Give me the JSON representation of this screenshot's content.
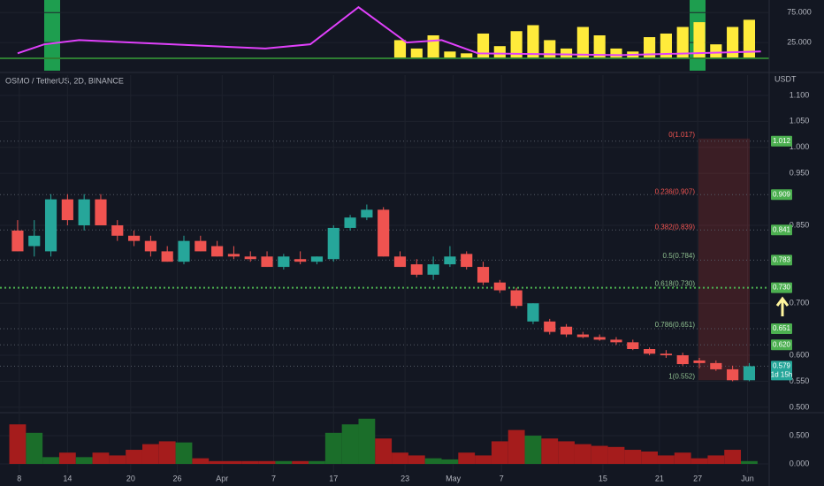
{
  "chart_data": [
    {
      "type": "candlestick",
      "title": "OSMO / TetherUS, 2D, BINANCE",
      "unit": "USDT",
      "xlim": [
        -1.06,
        45.2
      ],
      "xticks": [
        {
          "value": 0.1,
          "label": "8"
        },
        {
          "value": 3.0,
          "label": "14"
        },
        {
          "value": 6.8,
          "label": "20"
        },
        {
          "value": 9.6,
          "label": "26"
        },
        {
          "value": 12.3,
          "label": "Apr"
        },
        {
          "value": 15.4,
          "label": "7"
        },
        {
          "value": 19.0,
          "label": "17"
        },
        {
          "value": 23.3,
          "label": "23"
        },
        {
          "value": 26.2,
          "label": "May"
        },
        {
          "value": 29.1,
          "label": "7"
        },
        {
          "value": 35.2,
          "label": "15"
        },
        {
          "value": 38.6,
          "label": "21"
        },
        {
          "value": 40.9,
          "label": "27"
        },
        {
          "value": 43.9,
          "label": "Jun"
        }
      ],
      "ylim": [
        0.493,
        1.139
      ],
      "yticks": [
        {
          "value": 1.1,
          "label": "1.100"
        },
        {
          "value": 1.05,
          "label": "1.050"
        },
        {
          "value": 1.0,
          "label": "1.000"
        },
        {
          "value": 0.95,
          "label": "0.950"
        },
        {
          "value": 0.85,
          "label": "0.850"
        },
        {
          "value": 0.7,
          "label": "0.700"
        },
        {
          "value": 0.6,
          "label": "0.600"
        },
        {
          "value": 0.55,
          "label": "0.550"
        },
        {
          "value": 0.5,
          "label": "0.500"
        }
      ],
      "open": [
        0.84,
        0.81,
        0.8,
        0.9,
        0.85,
        0.9,
        0.85,
        0.83,
        0.82,
        0.8,
        0.78,
        0.82,
        0.81,
        0.795,
        0.79,
        0.79,
        0.77,
        0.785,
        0.78,
        0.785,
        0.845,
        0.865,
        0.88,
        0.79,
        0.775,
        0.755,
        0.775,
        0.795,
        0.77,
        0.74,
        0.725,
        0.665,
        0.665,
        0.655,
        0.64,
        0.635,
        0.63,
        0.625,
        0.612,
        0.603,
        0.6,
        0.59,
        0.585,
        0.573,
        0.552
      ],
      "high": [
        0.86,
        0.86,
        0.91,
        0.91,
        0.91,
        0.91,
        0.86,
        0.84,
        0.83,
        0.81,
        0.83,
        0.83,
        0.82,
        0.81,
        0.8,
        0.8,
        0.795,
        0.8,
        0.79,
        0.85,
        0.87,
        0.89,
        0.885,
        0.8,
        0.785,
        0.79,
        0.81,
        0.8,
        0.78,
        0.745,
        0.73,
        0.7,
        0.67,
        0.66,
        0.645,
        0.64,
        0.635,
        0.63,
        0.615,
        0.61,
        0.605,
        0.595,
        0.59,
        0.58,
        0.585
      ],
      "low": [
        0.8,
        0.79,
        0.79,
        0.85,
        0.84,
        0.85,
        0.82,
        0.81,
        0.79,
        0.78,
        0.775,
        0.8,
        0.79,
        0.785,
        0.78,
        0.77,
        0.765,
        0.775,
        0.775,
        0.78,
        0.84,
        0.86,
        0.79,
        0.77,
        0.75,
        0.745,
        0.77,
        0.765,
        0.735,
        0.72,
        0.69,
        0.66,
        0.64,
        0.635,
        0.633,
        0.628,
        0.62,
        0.61,
        0.6,
        0.595,
        0.58,
        0.575,
        0.57,
        0.55,
        0.55
      ],
      "close": [
        0.8,
        0.83,
        0.9,
        0.86,
        0.9,
        0.85,
        0.83,
        0.82,
        0.8,
        0.78,
        0.82,
        0.8,
        0.79,
        0.79,
        0.785,
        0.77,
        0.79,
        0.78,
        0.79,
        0.845,
        0.865,
        0.88,
        0.79,
        0.77,
        0.755,
        0.775,
        0.79,
        0.77,
        0.74,
        0.725,
        0.695,
        0.7,
        0.645,
        0.64,
        0.635,
        0.63,
        0.625,
        0.612,
        0.603,
        0.6,
        0.583,
        0.585,
        0.573,
        0.552,
        0.579
      ],
      "up_color": "#26a69a",
      "down_color": "#ef5350",
      "fib_levels": [
        {
          "value": 1.017,
          "label": "0(1.017)"
        },
        {
          "value": 0.907,
          "label": "0.236(0.907)"
        },
        {
          "value": 0.839,
          "label": "0.382(0.839)"
        },
        {
          "value": 0.784,
          "label": "0.5(0.784)"
        },
        {
          "value": 0.73,
          "label": "0.618(0.730)"
        },
        {
          "value": 0.651,
          "label": "0.786(0.651)"
        },
        {
          "value": 0.552,
          "label": "1(0.552)"
        }
      ],
      "price_lines": [
        {
          "value": 1.012,
          "label": "1.012"
        },
        {
          "value": 0.909,
          "label": "0.909"
        },
        {
          "value": 0.841,
          "label": "0.841"
        },
        {
          "value": 0.783,
          "label": "0.783"
        },
        {
          "value": 0.73,
          "label": "0.730"
        },
        {
          "value": 0.651,
          "label": "0.651"
        },
        {
          "value": 0.62,
          "label": "0.620"
        },
        {
          "value": 0.579,
          "label": "0.579",
          "countdown": "1d 15h"
        }
      ]
    },
    {
      "type": "indicator",
      "ylim": [
        -22,
        96
      ],
      "yticks": [
        {
          "value": 75,
          "label": "75.000"
        },
        {
          "value": 25,
          "label": "25.000"
        }
      ],
      "bars": {
        "color": "#ffeb3b",
        "x": [
          23,
          24,
          25,
          26,
          27,
          28,
          29,
          30,
          31,
          32,
          33,
          34,
          35,
          36,
          37,
          38,
          39,
          40,
          41,
          42,
          43,
          44
        ],
        "values": [
          29,
          15,
          37,
          10,
          7,
          40,
          19,
          44,
          54,
          29,
          15,
          51,
          37,
          15,
          10,
          34,
          40,
          51,
          59,
          22,
          51,
          63
        ]
      },
      "line": {
        "color": "#e040fb",
        "x": [
          0,
          1.6,
          3.7,
          14.9,
          17.6,
          20.5,
          23.4,
          25.5,
          27.7,
          36.2,
          44.7
        ],
        "values": [
          7,
          22,
          29,
          15,
          22,
          84,
          25,
          29,
          7,
          4,
          10
        ]
      }
    },
    {
      "type": "volume",
      "ylim": [
        -0.156,
        0.86
      ],
      "yticks": [
        {
          "value": 0.5,
          "label": "0.500"
        },
        {
          "value": 0,
          "label": "0.000"
        }
      ],
      "up_color": "#1b6e2a",
      "down_color": "#a51c1c",
      "values": [
        0.7,
        0.55,
        0.12,
        0.2,
        0.12,
        0.2,
        0.15,
        0.25,
        0.35,
        0.4,
        0.38,
        0.1,
        0.05,
        0.05,
        0.05,
        0.05,
        0.05,
        0.05,
        0.05,
        0.55,
        0.7,
        0.8,
        0.45,
        0.2,
        0.15,
        0.1,
        0.08,
        0.2,
        0.15,
        0.4,
        0.6,
        0.5,
        0.45,
        0.4,
        0.35,
        0.32,
        0.3,
        0.25,
        0.22,
        0.15,
        0.2,
        0.1,
        0.15,
        0.25,
        0.05
      ]
    }
  ]
}
